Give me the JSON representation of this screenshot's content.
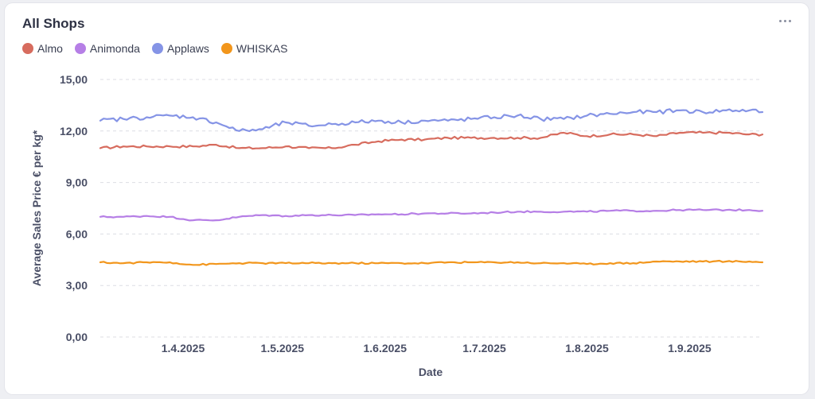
{
  "card": {
    "title": "All Shops"
  },
  "colors": {
    "Almo": "#d76c5e",
    "Animonda": "#b67fe6",
    "Applaws": "#8594e6",
    "WHISKAS": "#f2961c",
    "grid": "#dcdde3"
  },
  "chart_data": {
    "type": "line",
    "title": "All Shops",
    "xlabel": "Date",
    "ylabel": "Average Sales Price € per kg*",
    "ylim": [
      0,
      15
    ],
    "yticks": [
      "0,00",
      "3,00",
      "6,00",
      "9,00",
      "12,00",
      "15,00"
    ],
    "ytick_values": [
      0,
      3,
      6,
      9,
      12,
      15
    ],
    "xlim": [
      "2025-03-07",
      "2025-09-23"
    ],
    "xticks": [
      "1.4.2025",
      "1.5.2025",
      "1.6.2025",
      "1.7.2025",
      "1.8.2025",
      "1.9.2025"
    ],
    "xtick_dates": [
      "2025-04-01",
      "2025-05-01",
      "2025-06-01",
      "2025-07-01",
      "2025-08-01",
      "2025-09-01"
    ],
    "grid": "horizontal dashed",
    "legend_position": "top-left",
    "x": [
      "2025-03-07",
      "2025-03-14",
      "2025-03-21",
      "2025-03-28",
      "2025-04-04",
      "2025-04-11",
      "2025-04-18",
      "2025-04-25",
      "2025-05-02",
      "2025-05-09",
      "2025-05-16",
      "2025-05-23",
      "2025-05-30",
      "2025-06-06",
      "2025-06-13",
      "2025-06-20",
      "2025-06-27",
      "2025-07-04",
      "2025-07-11",
      "2025-07-18",
      "2025-07-25",
      "2025-08-01",
      "2025-08-08",
      "2025-08-15",
      "2025-08-22",
      "2025-08-29",
      "2025-09-05",
      "2025-09-12",
      "2025-09-19",
      "2025-09-23"
    ],
    "series": [
      {
        "name": "Almo",
        "values": [
          11.0,
          11.1,
          11.1,
          11.1,
          11.1,
          11.2,
          11.0,
          11.0,
          11.1,
          11.0,
          11.0,
          11.2,
          11.4,
          11.5,
          11.5,
          11.6,
          11.6,
          11.6,
          11.6,
          11.6,
          11.9,
          11.7,
          11.8,
          11.8,
          11.7,
          11.9,
          11.9,
          11.9,
          11.8,
          11.8
        ]
      },
      {
        "name": "Animonda",
        "values": [
          7.0,
          7.0,
          7.05,
          7.0,
          6.8,
          6.8,
          7.0,
          7.1,
          7.05,
          7.1,
          7.1,
          7.1,
          7.15,
          7.15,
          7.2,
          7.2,
          7.2,
          7.25,
          7.3,
          7.3,
          7.3,
          7.3,
          7.35,
          7.35,
          7.35,
          7.4,
          7.4,
          7.4,
          7.4,
          7.35
        ]
      },
      {
        "name": "Applaws",
        "values": [
          12.6,
          12.7,
          12.8,
          12.9,
          12.8,
          12.5,
          12.0,
          12.1,
          12.5,
          12.3,
          12.4,
          12.5,
          12.6,
          12.5,
          12.6,
          12.6,
          12.7,
          12.8,
          12.9,
          12.7,
          12.7,
          12.9,
          13.0,
          13.1,
          13.1,
          13.2,
          13.1,
          13.2,
          13.2,
          13.1
        ]
      },
      {
        "name": "WHISKAS",
        "values": [
          4.35,
          4.3,
          4.35,
          4.35,
          4.2,
          4.25,
          4.3,
          4.3,
          4.3,
          4.3,
          4.3,
          4.3,
          4.3,
          4.3,
          4.3,
          4.35,
          4.35,
          4.35,
          4.35,
          4.3,
          4.3,
          4.25,
          4.3,
          4.3,
          4.4,
          4.4,
          4.4,
          4.4,
          4.4,
          4.35
        ]
      }
    ]
  }
}
